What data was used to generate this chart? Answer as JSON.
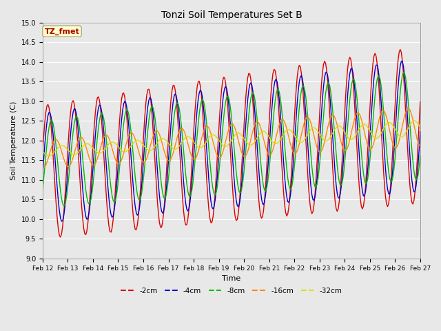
{
  "title": "Tonzi Soil Temperatures Set B",
  "xlabel": "Time",
  "ylabel": "Soil Temperature (C)",
  "annotation": "TZ_fmet",
  "ylim": [
    9.0,
    15.0
  ],
  "yticks": [
    9.0,
    9.5,
    10.0,
    10.5,
    11.0,
    11.5,
    12.0,
    12.5,
    13.0,
    13.5,
    14.0,
    14.5,
    15.0
  ],
  "xtick_labels": [
    "Feb 12",
    "Feb 13",
    "Feb 14",
    "Feb 15",
    "Feb 16",
    "Feb 17",
    "Feb 18",
    "Feb 19",
    "Feb 20",
    "Feb 21",
    "Feb 22",
    "Feb 23",
    "Feb 24",
    "Feb 25",
    "Feb 26",
    "Feb 27"
  ],
  "series": {
    "-2cm": {
      "color": "#dd0000",
      "linewidth": 1.0
    },
    "-4cm": {
      "color": "#0000cc",
      "linewidth": 1.0
    },
    "-8cm": {
      "color": "#00bb00",
      "linewidth": 1.0
    },
    "-16cm": {
      "color": "#ff8800",
      "linewidth": 1.0
    },
    "-32cm": {
      "color": "#dddd00",
      "linewidth": 1.0
    }
  },
  "bg_color": "#e8e8e8",
  "plot_bg_color": "#e8e8e8",
  "grid_color": "white",
  "grid_linewidth": 0.8,
  "figsize": [
    6.4,
    4.8
  ],
  "dpi": 100
}
